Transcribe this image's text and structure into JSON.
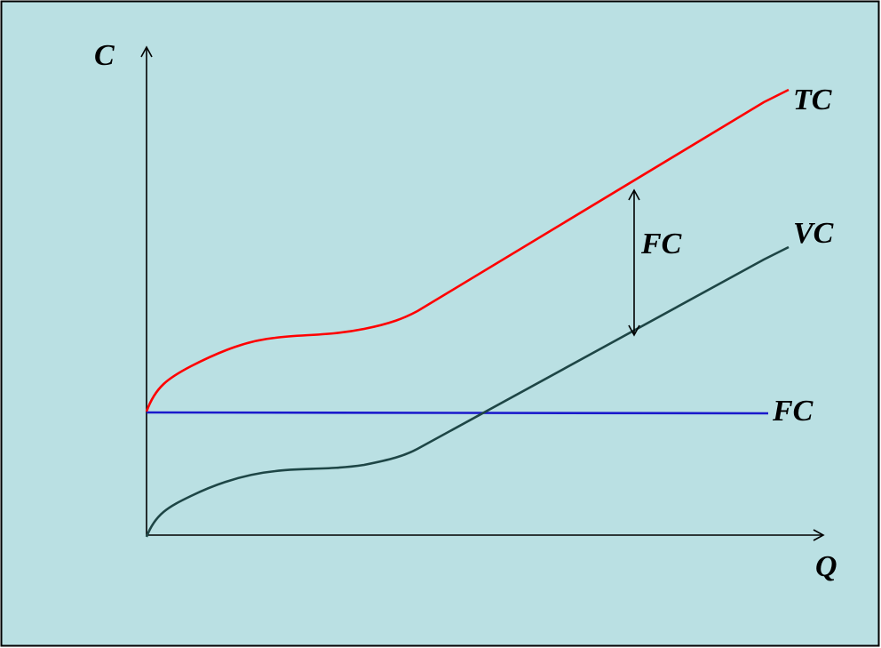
{
  "diagram": {
    "y_axis_label": "C",
    "x_axis_label": "Q",
    "curves": {
      "tc": {
        "label": "TC",
        "color": "#ff0000"
      },
      "vc": {
        "label": "VC",
        "color": "#1e4646"
      },
      "fc": {
        "label": "FC",
        "color": "#1a1acc"
      }
    },
    "gap_label": "FC",
    "background": "#bae0e3"
  }
}
